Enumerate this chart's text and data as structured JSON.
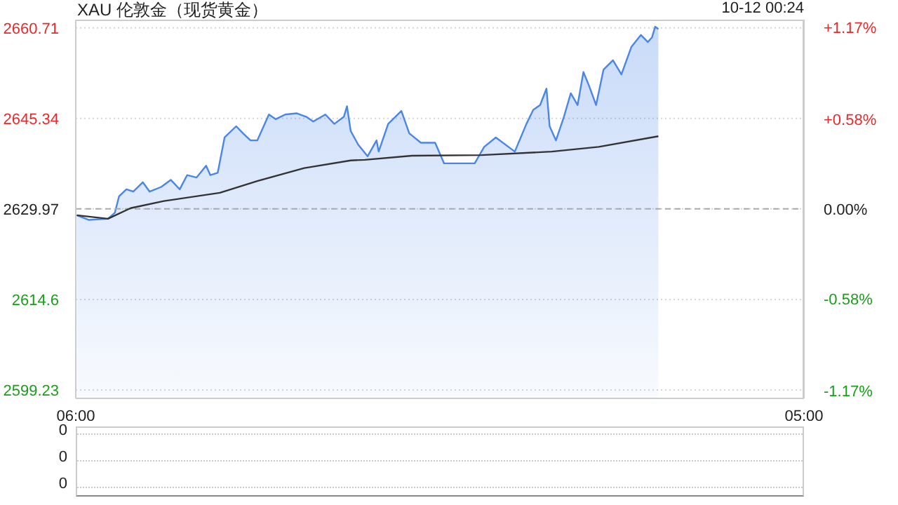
{
  "chart_data": [
    {
      "type": "area",
      "title": "XAU 伦敦金（现货黄金）",
      "annotations": [
        "10-12 00:24"
      ],
      "xlim": [
        "--10-11T06:00",
        "--10-12T05:00"
      ],
      "xticks": [
        {
          "value": "--10-11T06:00",
          "label": "06:00"
        },
        {
          "value": "--10-12T05:00",
          "label": "05:00"
        }
      ],
      "ylim": [
        2597.8,
        2662.1
      ],
      "yticks": [
        2599.23,
        2614.6,
        2629.97,
        2645.34,
        2660.71
      ],
      "y2lim": [
        -1.22,
        1.22
      ],
      "y2ticks": [
        {
          "value": -1.17,
          "label": "-1.17%"
        },
        {
          "value": -0.58,
          "label": "-0.58%"
        },
        {
          "value": 0,
          "label": "0.00%"
        },
        {
          "value": 0.58,
          "label": "+0.58%"
        },
        {
          "value": 1.17,
          "label": "+1.17%"
        }
      ],
      "grid": "y",
      "ref_lines": [
        {
          "axis": "y",
          "value": 2629.97,
          "color": "#aaaaaa",
          "line_style": "dashed"
        }
      ],
      "series": [
        {
          "color": "#4a86e8",
          "x": [
            "--10-11T06:02",
            "--10-11T06:25",
            "--10-11T07:01",
            "--10-11T07:14",
            "--10-11T07:22",
            "--10-11T07:36",
            "--10-11T07:49",
            "--10-11T08:07",
            "--10-11T08:20",
            "--10-11T08:42",
            "--10-11T09:00",
            "--10-11T09:17",
            "--10-11T09:31",
            "--10-11T09:49",
            "--10-11T10:07",
            "--10-11T10:15",
            "--10-11T10:29",
            "--10-11T10:42",
            "--10-11T11:04",
            "--10-11T11:17",
            "--10-11T11:31",
            "--10-11T11:44",
            "--10-11T12:06",
            "--10-11T12:19",
            "--10-11T12:37",
            "--10-11T12:59",
            "--10-11T13:17",
            "--10-11T13:30",
            "--10-11T13:53",
            "--10-11T14:10",
            "--10-11T14:28",
            "--10-11T14:34",
            "--10-11T14:41",
            "--10-11T14:55",
            "--10-11T15:13",
            "--10-11T15:30",
            "--10-11T15:34",
            "--10-11T15:52",
            "--10-11T16:17",
            "--10-11T16:32",
            "--10-11T16:54",
            "--10-11T17:21",
            "--10-11T17:38",
            "--10-11T18:05",
            "--10-11T18:36",
            "--10-11T18:54",
            "--10-11T19:16",
            "--10-11T19:52",
            "--10-11T20:14",
            "--10-11T20:27",
            "--10-11T20:40",
            "--10-11T20:52",
            "--10-11T20:58",
            "--10-11T21:10",
            "--10-11T21:25",
            "--10-11T21:38",
            "--10-11T21:51",
            "--10-11T22:02",
            "--10-11T22:13",
            "--10-11T22:26",
            "--10-11T22:40",
            "--10-11T22:58",
            "--10-11T23:14",
            "--10-11T23:33",
            "--10-11T23:51",
            "--10-12T00:04",
            "--10-12T00:12",
            "--10-12T00:18",
            "--10-12T00:24"
          ],
          "values": [
            2628.9,
            2628.1,
            2628.3,
            2629.3,
            2632.1,
            2633.3,
            2632.9,
            2634.5,
            2632.9,
            2633.7,
            2634.9,
            2633.3,
            2635.7,
            2635.3,
            2637.3,
            2635.7,
            2636.1,
            2642.1,
            2644.0,
            2642.8,
            2641.6,
            2641.6,
            2646.0,
            2645.2,
            2646.0,
            2646.2,
            2645.6,
            2644.8,
            2646.0,
            2644.4,
            2645.6,
            2647.4,
            2643.2,
            2640.9,
            2638.9,
            2641.6,
            2639.7,
            2644.4,
            2646.6,
            2642.8,
            2641.2,
            2641.2,
            2637.7,
            2637.7,
            2637.7,
            2640.5,
            2642.1,
            2639.7,
            2644.4,
            2646.8,
            2647.6,
            2650.4,
            2644.0,
            2641.6,
            2645.6,
            2649.6,
            2647.6,
            2653.2,
            2650.8,
            2647.6,
            2653.6,
            2655.2,
            2652.8,
            2657.5,
            2659.5,
            2658.3,
            2659.1,
            2660.9,
            2660.5
          ]
        },
        {
          "type": "line",
          "color": "#333333",
          "x": [
            "--10-11T06:02",
            "--10-11T07:01",
            "--10-11T07:44",
            "--10-11T08:47",
            "--10-11T10:33",
            "--10-11T11:44",
            "--10-11T13:13",
            "--10-11T14:41",
            "--10-11T15:08",
            "--10-11T16:37",
            "--10-11T18:49",
            "--10-11T21:02",
            "--10-11T22:31",
            "--10-12T00:24"
          ],
          "values": [
            2628.9,
            2628.3,
            2630.1,
            2631.3,
            2632.7,
            2634.7,
            2636.9,
            2638.2,
            2638.3,
            2639.0,
            2639.1,
            2639.7,
            2640.5,
            2642.3
          ]
        }
      ]
    },
    {
      "type": "other",
      "annotations": [
        "0",
        "0",
        "0"
      ]
    }
  ]
}
